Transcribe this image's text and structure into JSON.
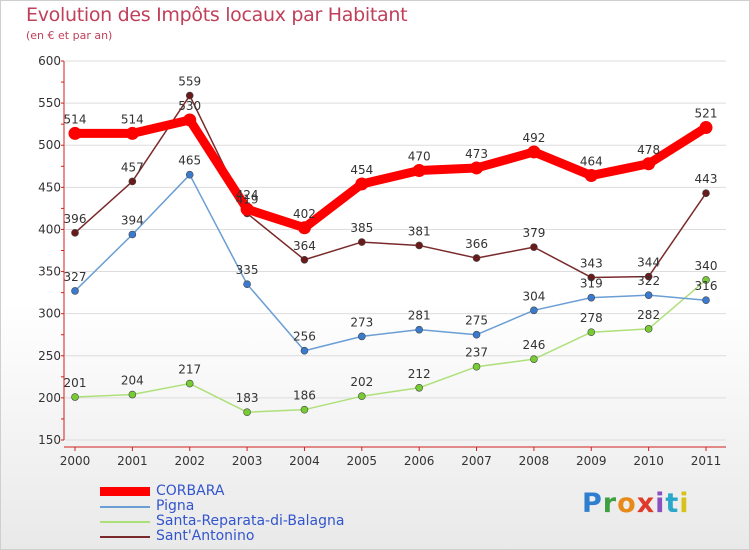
{
  "title": "Evolution des Impôts locaux par Habitant",
  "subtitle": "(en € et par an)",
  "logo": {
    "text": "Proxiti",
    "colors": [
      "#2f7fd0",
      "#3fa03f",
      "#e88a1a",
      "#e03a2a",
      "#8a4fc0",
      "#2aa7c9",
      "#d8c21a"
    ]
  },
  "chart_data": {
    "type": "line",
    "title": "Evolution des Impôts locaux par Habitant",
    "subtitle": "(en € et par an)",
    "x": [
      "2000",
      "2001",
      "2002",
      "2003",
      "2004",
      "2005",
      "2006",
      "2007",
      "2008",
      "2009",
      "2010",
      "2011"
    ],
    "ylim": [
      150,
      600
    ],
    "yticks": [
      150,
      200,
      250,
      300,
      350,
      400,
      450,
      500,
      550,
      600
    ],
    "legend_position": "bottom-left",
    "series": [
      {
        "name": "Sant'Antonino",
        "color": "#7a2a2a",
        "values": [
          396,
          457,
          559,
          419,
          364,
          385,
          381,
          366,
          379,
          343,
          344,
          443
        ]
      },
      {
        "name": "Santa-Reparata-di-Balagna",
        "color": "#aee07a",
        "values": [
          201,
          204,
          217,
          183,
          186,
          202,
          212,
          237,
          246,
          278,
          282,
          340
        ]
      },
      {
        "name": "Pigna",
        "color": "#6a9ed4",
        "values": [
          327,
          394,
          465,
          335,
          256,
          273,
          281,
          275,
          304,
          319,
          322,
          316
        ]
      },
      {
        "name": "CORBARA",
        "color": "#ff0000",
        "values": [
          514,
          514,
          530,
          424,
          402,
          454,
          470,
          473,
          492,
          464,
          478,
          521
        ]
      }
    ]
  },
  "legend": [
    {
      "name": "CORBARA",
      "color": "#ff0000"
    },
    {
      "name": "Pigna",
      "color": "#6a9ed4"
    },
    {
      "name": "Santa-Reparata-di-Balagna",
      "color": "#aee07a"
    },
    {
      "name": "Sant'Antonino",
      "color": "#7a2a2a"
    }
  ]
}
